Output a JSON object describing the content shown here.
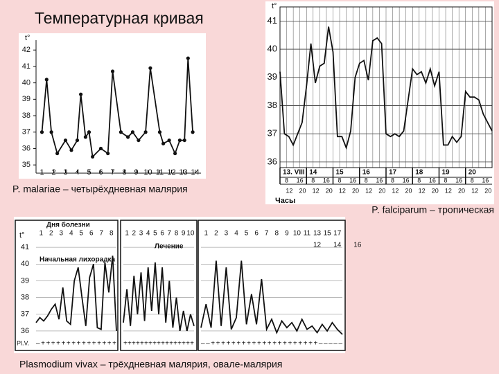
{
  "title": "Температурная кривая",
  "chart_data": [
    {
      "type": "line",
      "caption": "P. malariae – четырёхдневная малярия",
      "y_label": "t°",
      "x": [
        1,
        1.4,
        1.8,
        2.3,
        3,
        3.5,
        4,
        4.3,
        4.7,
        5,
        5.3,
        6,
        6.6,
        7,
        7.7,
        8.3,
        8.7,
        9.2,
        9.8,
        10.2,
        11,
        11.3,
        11.8,
        12.3,
        12.7,
        13.1,
        13.4,
        13.8
      ],
      "values": [
        37,
        40.2,
        37,
        35.7,
        36.5,
        35.9,
        36.5,
        39.3,
        36.7,
        37,
        35.5,
        36,
        35.7,
        40.7,
        37,
        36.7,
        37,
        36.5,
        37,
        40.9,
        37,
        36.3,
        36.5,
        35.7,
        36.5,
        36.5,
        41.5,
        37
      ],
      "color": "#111",
      "xlim": [
        0.5,
        14.5
      ],
      "xticks": [
        1,
        2,
        3,
        4,
        5,
        6,
        7,
        8,
        9,
        10,
        11,
        12,
        13,
        14
      ],
      "ylim": [
        34.5,
        42.6
      ],
      "yticks": [
        35,
        36,
        37,
        38,
        39,
        40,
        41,
        42
      ],
      "grid": false
    },
    {
      "type": "line",
      "caption": "P. falciparum – тропическая",
      "y_label": "t°",
      "x_label": "Часы",
      "days": [
        "13. VIII",
        "14",
        "15",
        "16",
        "17",
        "18",
        "19",
        "20"
      ],
      "hours_inner": [
        "8",
        "16",
        "8",
        "16",
        "8",
        "16",
        "8",
        "16",
        "8",
        "16",
        "8",
        "16",
        "8",
        "16",
        "8",
        "16"
      ],
      "hours_outer": [
        "12",
        "20",
        "12",
        "20",
        "12",
        "20",
        "12",
        "20",
        "12",
        "20",
        "12",
        "20",
        "12",
        "20",
        "12",
        "20"
      ],
      "values": [
        39.2,
        37.0,
        36.9,
        36.6,
        37.0,
        37.4,
        38.7,
        40.2,
        38.8,
        39.4,
        39.5,
        40.8,
        39.9,
        36.9,
        36.9,
        36.5,
        37.1,
        39.0,
        39.5,
        39.6,
        38.9,
        40.3,
        40.4,
        40.2,
        37.0,
        36.9,
        37.0,
        36.9,
        37.1,
        38.2,
        39.3,
        39.1,
        39.2,
        38.8,
        39.3,
        38.7,
        39.2,
        36.6,
        36.6,
        36.9,
        36.7,
        36.9,
        38.5,
        38.3,
        38.3,
        38.2,
        37.7,
        37.4,
        37.1
      ],
      "color": "#111",
      "ylim": [
        35.8,
        41.5
      ],
      "yticks": [
        36,
        37,
        38,
        39,
        40,
        41
      ],
      "grid": true
    },
    {
      "type": "panels",
      "caption": "Plasmodium vivax – трёхдневная малярия, овале-малярия",
      "y_label": "t°",
      "ylim": [
        35.5,
        41.5
      ],
      "yticks": [
        36,
        37,
        38,
        39,
        40,
        41
      ],
      "color": "#111",
      "panels": [
        {
          "header": "Дня болезни",
          "note": "Начальная лихорадка",
          "row_label": "Pl.V.",
          "days": [
            "1",
            "2",
            "3",
            "4",
            "5",
            "6",
            "7",
            "8"
          ],
          "parasites": "– + + + + + + + + + + + + + + +",
          "values": [
            36.5,
            36.8,
            36.6,
            36.9,
            37.3,
            37.6,
            36.7,
            38.6,
            36.6,
            36.4,
            39.0,
            39.8,
            38.0,
            36.3,
            39.2,
            40.0,
            36.2,
            36.1,
            40.1,
            38.3,
            40.5,
            36.0
          ]
        },
        {
          "note": "Лечение",
          "days": [
            "1",
            "2",
            "3",
            "4",
            "5",
            "6",
            "7",
            "8",
            "9",
            "10"
          ],
          "parasites": "+ + + + + + + + + + + + + + + + +",
          "values": [
            36.5,
            38.5,
            36.3,
            39.3,
            37.0,
            39.5,
            36.6,
            39.8,
            37.2,
            40.1,
            37.0,
            39.8,
            36.5,
            39.0,
            36.2,
            38.0,
            36.0,
            37.2,
            36.0,
            37.0,
            36.3
          ]
        },
        {
          "days": [
            "1",
            "2",
            "3",
            "4",
            "5",
            "6",
            "7",
            "8",
            "9",
            "10",
            "11",
            "13",
            "15",
            "17"
          ],
          "days_2": [
            "12",
            "14",
            "16"
          ],
          "parasites": "– – + + + + + + + + + + + + + + + + + + + + + – – – – –",
          "values": [
            36.2,
            37.6,
            36.2,
            40.2,
            36.3,
            39.8,
            36.1,
            36.8,
            40.2,
            36.4,
            38.2,
            36.4,
            39.1,
            36.1,
            36.7,
            35.9,
            36.6,
            36.2,
            36.5,
            36.0,
            36.7,
            36.1,
            36.3,
            35.9,
            36.4,
            36.0,
            36.5,
            36.1,
            35.8
          ]
        }
      ]
    }
  ]
}
